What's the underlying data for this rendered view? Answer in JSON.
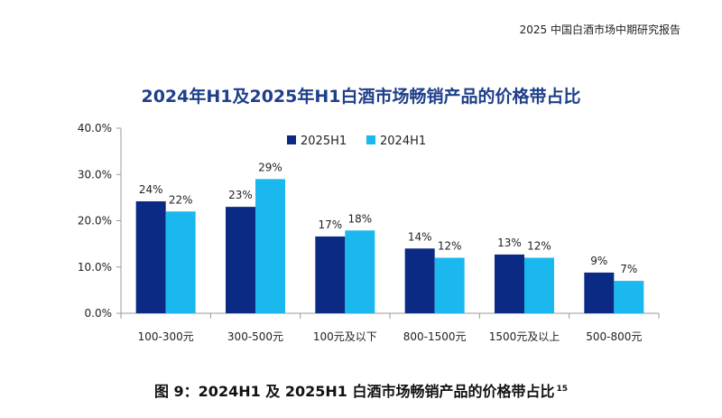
{
  "header": {
    "report_title": "2025 中国白酒市场中期研究报告"
  },
  "caption": {
    "text": "图 9：2024H1 及 2025H1 白酒市场畅销产品的价格带占比",
    "footnote": "15"
  },
  "colors": {
    "series_2025": "#0a2a84",
    "series_2024": "#1ab8ef",
    "title": "#1f3f8a"
  },
  "chart_data": {
    "type": "bar",
    "title": "2024年H1及2025年H1白酒市场畅销产品的价格带占比",
    "xlabel": "",
    "ylabel": "",
    "categories": [
      "100-300元",
      "300-500元",
      "100元及以下",
      "800-1500元",
      "1500元及以上",
      "500-800元"
    ],
    "series": [
      {
        "name": "2025H1",
        "values": [
          24.2,
          23.0,
          16.6,
          14.0,
          12.7,
          8.8
        ],
        "labels": [
          "24%",
          "23%",
          "17%",
          "14%",
          "13%",
          "9%"
        ]
      },
      {
        "name": "2024H1",
        "values": [
          22.0,
          29.0,
          17.9,
          12.0,
          12.0,
          7.0
        ],
        "labels": [
          "22%",
          "29%",
          "18%",
          "12%",
          "12%",
          "7%"
        ]
      }
    ],
    "ylim": [
      0,
      40
    ],
    "yticks": [
      "0.0%",
      "10.0%",
      "20.0%",
      "30.0%",
      "40.0%"
    ],
    "legend": "top-right",
    "grid": false
  }
}
